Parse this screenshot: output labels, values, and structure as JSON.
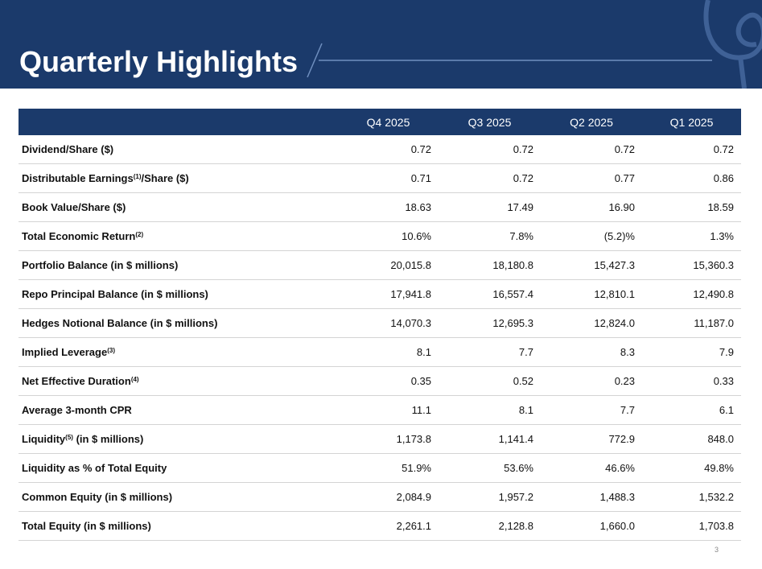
{
  "header": {
    "title": "Quarterly Highlights"
  },
  "table": {
    "columns": [
      "Q4 2025",
      "Q3 2025",
      "Q2 2025",
      "Q1 2025"
    ],
    "rows": [
      {
        "label": [
          {
            "text": "Dividend/Share ($)"
          }
        ],
        "cells": [
          "0.72",
          "0.72",
          "0.72",
          "0.72"
        ]
      },
      {
        "label": [
          {
            "text": "Distributable Earnings"
          },
          {
            "sup": "(1)"
          },
          {
            "text": "/Share ($)"
          }
        ],
        "cells": [
          "0.71",
          "0.72",
          "0.77",
          "0.86"
        ]
      },
      {
        "label": [
          {
            "text": "Book Value/Share ($)"
          }
        ],
        "cells": [
          "18.63",
          "17.49",
          "16.90",
          "18.59"
        ]
      },
      {
        "label": [
          {
            "text": "Total Economic Return"
          },
          {
            "sup": "(2)"
          }
        ],
        "cells": [
          "10.6%",
          "7.8%",
          "(5.2)%",
          "1.3%"
        ]
      },
      {
        "label": [
          {
            "text": "Portfolio Balance (in $ millions)"
          }
        ],
        "cells": [
          "20,015.8",
          "18,180.8",
          "15,427.3",
          "15,360.3"
        ]
      },
      {
        "label": [
          {
            "text": "Repo Principal Balance (in $ millions)"
          }
        ],
        "cells": [
          "17,941.8",
          "16,557.4",
          "12,810.1",
          "12,490.8"
        ]
      },
      {
        "label": [
          {
            "text": "Hedges Notional Balance (in $ millions)"
          }
        ],
        "cells": [
          "14,070.3",
          "12,695.3",
          "12,824.0",
          "11,187.0"
        ]
      },
      {
        "label": [
          {
            "text": "Implied Leverage"
          },
          {
            "sup": "(3)"
          }
        ],
        "cells": [
          "8.1",
          "7.7",
          "8.3",
          "7.9"
        ]
      },
      {
        "label": [
          {
            "text": "Net Effective Duration"
          },
          {
            "sup": "(4)"
          }
        ],
        "cells": [
          "0.35",
          "0.52",
          "0.23",
          "0.33"
        ]
      },
      {
        "label": [
          {
            "text": "Average 3-month CPR"
          }
        ],
        "cells": [
          "11.1",
          "8.1",
          "7.7",
          "6.1"
        ]
      },
      {
        "label": [
          {
            "text": "Liquidity"
          },
          {
            "sup": "(5)"
          },
          {
            "text": " (in $ millions)"
          }
        ],
        "cells": [
          "1,173.8",
          "1,141.4",
          "772.9",
          "848.0"
        ]
      },
      {
        "label": [
          {
            "text": "Liquidity as % of Total Equity"
          }
        ],
        "cells": [
          "51.9%",
          "53.6%",
          "46.6%",
          "49.8%"
        ]
      },
      {
        "label": [
          {
            "text": "Common Equity (in $ millions)"
          }
        ],
        "cells": [
          "2,084.9",
          "1,957.2",
          "1,488.3",
          "1,532.2"
        ]
      },
      {
        "label": [
          {
            "text": "Total Equity (in $ millions)"
          }
        ],
        "cells": [
          "2,261.1",
          "2,128.8",
          "1,660.0",
          "1,703.8"
        ]
      }
    ]
  },
  "footer": {
    "page_number": "3"
  }
}
